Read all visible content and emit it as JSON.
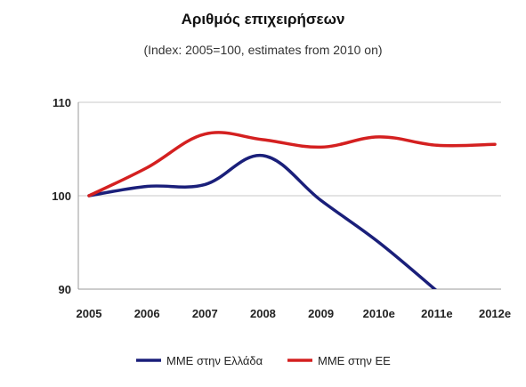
{
  "chart_data": {
    "type": "line",
    "title": "Αριθμός επιχειρήσεων",
    "subtitle": "(Index: 2005=100, estimates from 2010 on)",
    "categories": [
      "2005",
      "2006",
      "2007",
      "2008",
      "2009",
      "2010e",
      "2011e",
      "2012e"
    ],
    "ylim": [
      90,
      110
    ],
    "yticks": [
      90,
      100,
      110
    ],
    "grid": "horizontal",
    "legend_position": "bottom",
    "series": [
      {
        "name": "ΜΜΕ στην Ελλάδα",
        "color": "#1a1f7a",
        "values": [
          100,
          101,
          101.2,
          104.3,
          99.5,
          95,
          89.8,
          null
        ]
      },
      {
        "name": "ΜΜΕ στην ΕΕ",
        "color": "#d42020",
        "values": [
          100,
          103,
          106.6,
          106,
          105.2,
          106.3,
          105.4,
          105.5
        ]
      }
    ]
  }
}
